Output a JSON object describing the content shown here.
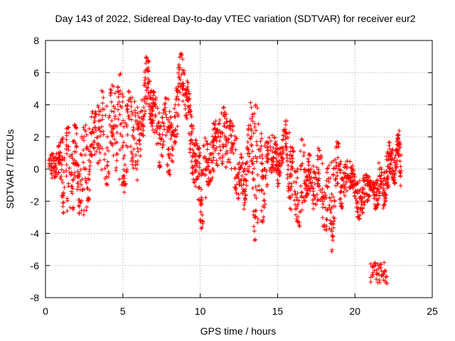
{
  "chart_data": {
    "type": "scatter",
    "title": "Day 143 of 2022, Sidereal Day-to-day VTEC variation (SDTVAR) for receiver eur2",
    "xlabel": "GPS time / hours",
    "ylabel": "SDTVAR / TECUs",
    "xlim": [
      0,
      25
    ],
    "ylim": [
      -8,
      8
    ],
    "xticks": [
      0,
      5,
      10,
      15,
      20,
      25
    ],
    "yticks": [
      -8,
      -6,
      -4,
      -2,
      0,
      2,
      4,
      6,
      8
    ],
    "grid": true,
    "marker": "+",
    "color": "#ff0000",
    "series": [
      {
        "name": "SDTVAR",
        "envelope": [
          [
            0.2,
            -0.3,
            0.5
          ],
          [
            0.5,
            -0.7,
            1.2
          ],
          [
            0.8,
            -0.3,
            1.3
          ],
          [
            1.0,
            -0.8,
            1.8
          ],
          [
            1.2,
            -3.2,
            2.4
          ],
          [
            1.5,
            -2.8,
            2.6
          ],
          [
            1.8,
            -2.5,
            3.0
          ],
          [
            2.0,
            -1.0,
            2.5
          ],
          [
            2.2,
            -3.0,
            2.2
          ],
          [
            2.5,
            -3.3,
            2.8
          ],
          [
            2.8,
            -2.0,
            2.6
          ],
          [
            3.0,
            0.0,
            3.5
          ],
          [
            3.3,
            0.8,
            4.0
          ],
          [
            3.6,
            -0.5,
            4.9
          ],
          [
            4.0,
            -1.0,
            4.5
          ],
          [
            4.3,
            0.5,
            5.2
          ],
          [
            4.6,
            -0.2,
            5.6
          ],
          [
            4.9,
            -1.0,
            6.0
          ],
          [
            5.1,
            -1.5,
            5.5
          ],
          [
            5.4,
            1.0,
            4.8
          ],
          [
            5.7,
            0.0,
            4.5
          ],
          [
            6.0,
            -1.0,
            3.8
          ],
          [
            6.3,
            2.0,
            5.2
          ],
          [
            6.5,
            4.0,
            7.0
          ],
          [
            6.7,
            3.5,
            6.6
          ],
          [
            6.9,
            2.5,
            5.0
          ],
          [
            7.1,
            1.5,
            4.6
          ],
          [
            7.4,
            0.0,
            3.5
          ],
          [
            7.7,
            1.0,
            5.3
          ],
          [
            8.0,
            -0.5,
            4.5
          ],
          [
            8.2,
            0.0,
            3.0
          ],
          [
            8.5,
            2.0,
            6.5
          ],
          [
            8.7,
            4.5,
            7.4
          ],
          [
            9.0,
            3.5,
            6.5
          ],
          [
            9.2,
            3.0,
            5.5
          ],
          [
            9.4,
            0.0,
            3.5
          ],
          [
            9.6,
            -0.8,
            2.5
          ],
          [
            9.8,
            -1.5,
            1.5
          ],
          [
            10.0,
            -3.8,
            1.2
          ],
          [
            10.2,
            -3.5,
            2.2
          ],
          [
            10.5,
            -1.0,
            1.5
          ],
          [
            10.8,
            -0.5,
            2.8
          ],
          [
            11.0,
            0.0,
            3.0
          ],
          [
            11.3,
            0.5,
            3.4
          ],
          [
            11.6,
            0.0,
            4.0
          ],
          [
            11.9,
            0.5,
            3.2
          ],
          [
            12.2,
            -1.0,
            2.5
          ],
          [
            12.5,
            -2.0,
            1.5
          ],
          [
            12.8,
            -3.0,
            0.2
          ],
          [
            13.0,
            -1.0,
            1.5
          ],
          [
            13.3,
            0.5,
            4.6
          ],
          [
            13.5,
            -4.5,
            4.2
          ],
          [
            13.7,
            -4.0,
            3.8
          ],
          [
            14.0,
            -3.5,
            2.5
          ],
          [
            14.2,
            -2.5,
            1.5
          ],
          [
            14.5,
            0.0,
            2.3
          ],
          [
            14.8,
            -0.5,
            2.0
          ],
          [
            15.0,
            -1.5,
            1.2
          ],
          [
            15.2,
            0.0,
            1.5
          ],
          [
            15.5,
            1.0,
            3.0
          ],
          [
            15.7,
            -1.5,
            3.3
          ],
          [
            15.9,
            -3.3,
            1.5
          ],
          [
            16.2,
            -3.0,
            0.5
          ],
          [
            16.5,
            -4.0,
            2.0
          ],
          [
            16.8,
            -2.0,
            1.3
          ],
          [
            17.0,
            -1.5,
            1.0
          ],
          [
            17.3,
            -2.5,
            0.5
          ],
          [
            17.6,
            -2.0,
            1.5
          ],
          [
            17.9,
            -3.5,
            0.5
          ],
          [
            18.2,
            -4.0,
            0.0
          ],
          [
            18.5,
            -5.3,
            0.5
          ],
          [
            18.7,
            -3.0,
            1.9
          ],
          [
            19.0,
            -2.0,
            1.5
          ],
          [
            19.2,
            -2.5,
            0.0
          ],
          [
            19.5,
            -1.5,
            0.5
          ],
          [
            19.8,
            -1.0,
            0.5
          ],
          [
            20.0,
            -2.0,
            -0.5
          ],
          [
            20.2,
            -3.2,
            -0.8
          ],
          [
            20.5,
            -2.8,
            -0.5
          ],
          [
            20.8,
            -2.0,
            -0.2
          ],
          [
            21.0,
            -1.5,
            -0.5
          ],
          [
            21.3,
            -2.5,
            -1.0
          ],
          [
            21.5,
            -2.3,
            0.5
          ],
          [
            21.8,
            -2.5,
            -0.2
          ],
          [
            22.0,
            -2.0,
            0.8
          ],
          [
            22.2,
            -1.5,
            1.7
          ],
          [
            22.4,
            -0.5,
            1.5
          ],
          [
            22.6,
            -1.0,
            0.5
          ],
          [
            22.8,
            1.0,
            2.7
          ],
          [
            23.0,
            -1.5,
            2.5
          ]
        ],
        "cluster": {
          "x_range": [
            21.0,
            22.1
          ],
          "y_range": [
            -7.1,
            -5.8
          ]
        }
      }
    ]
  }
}
